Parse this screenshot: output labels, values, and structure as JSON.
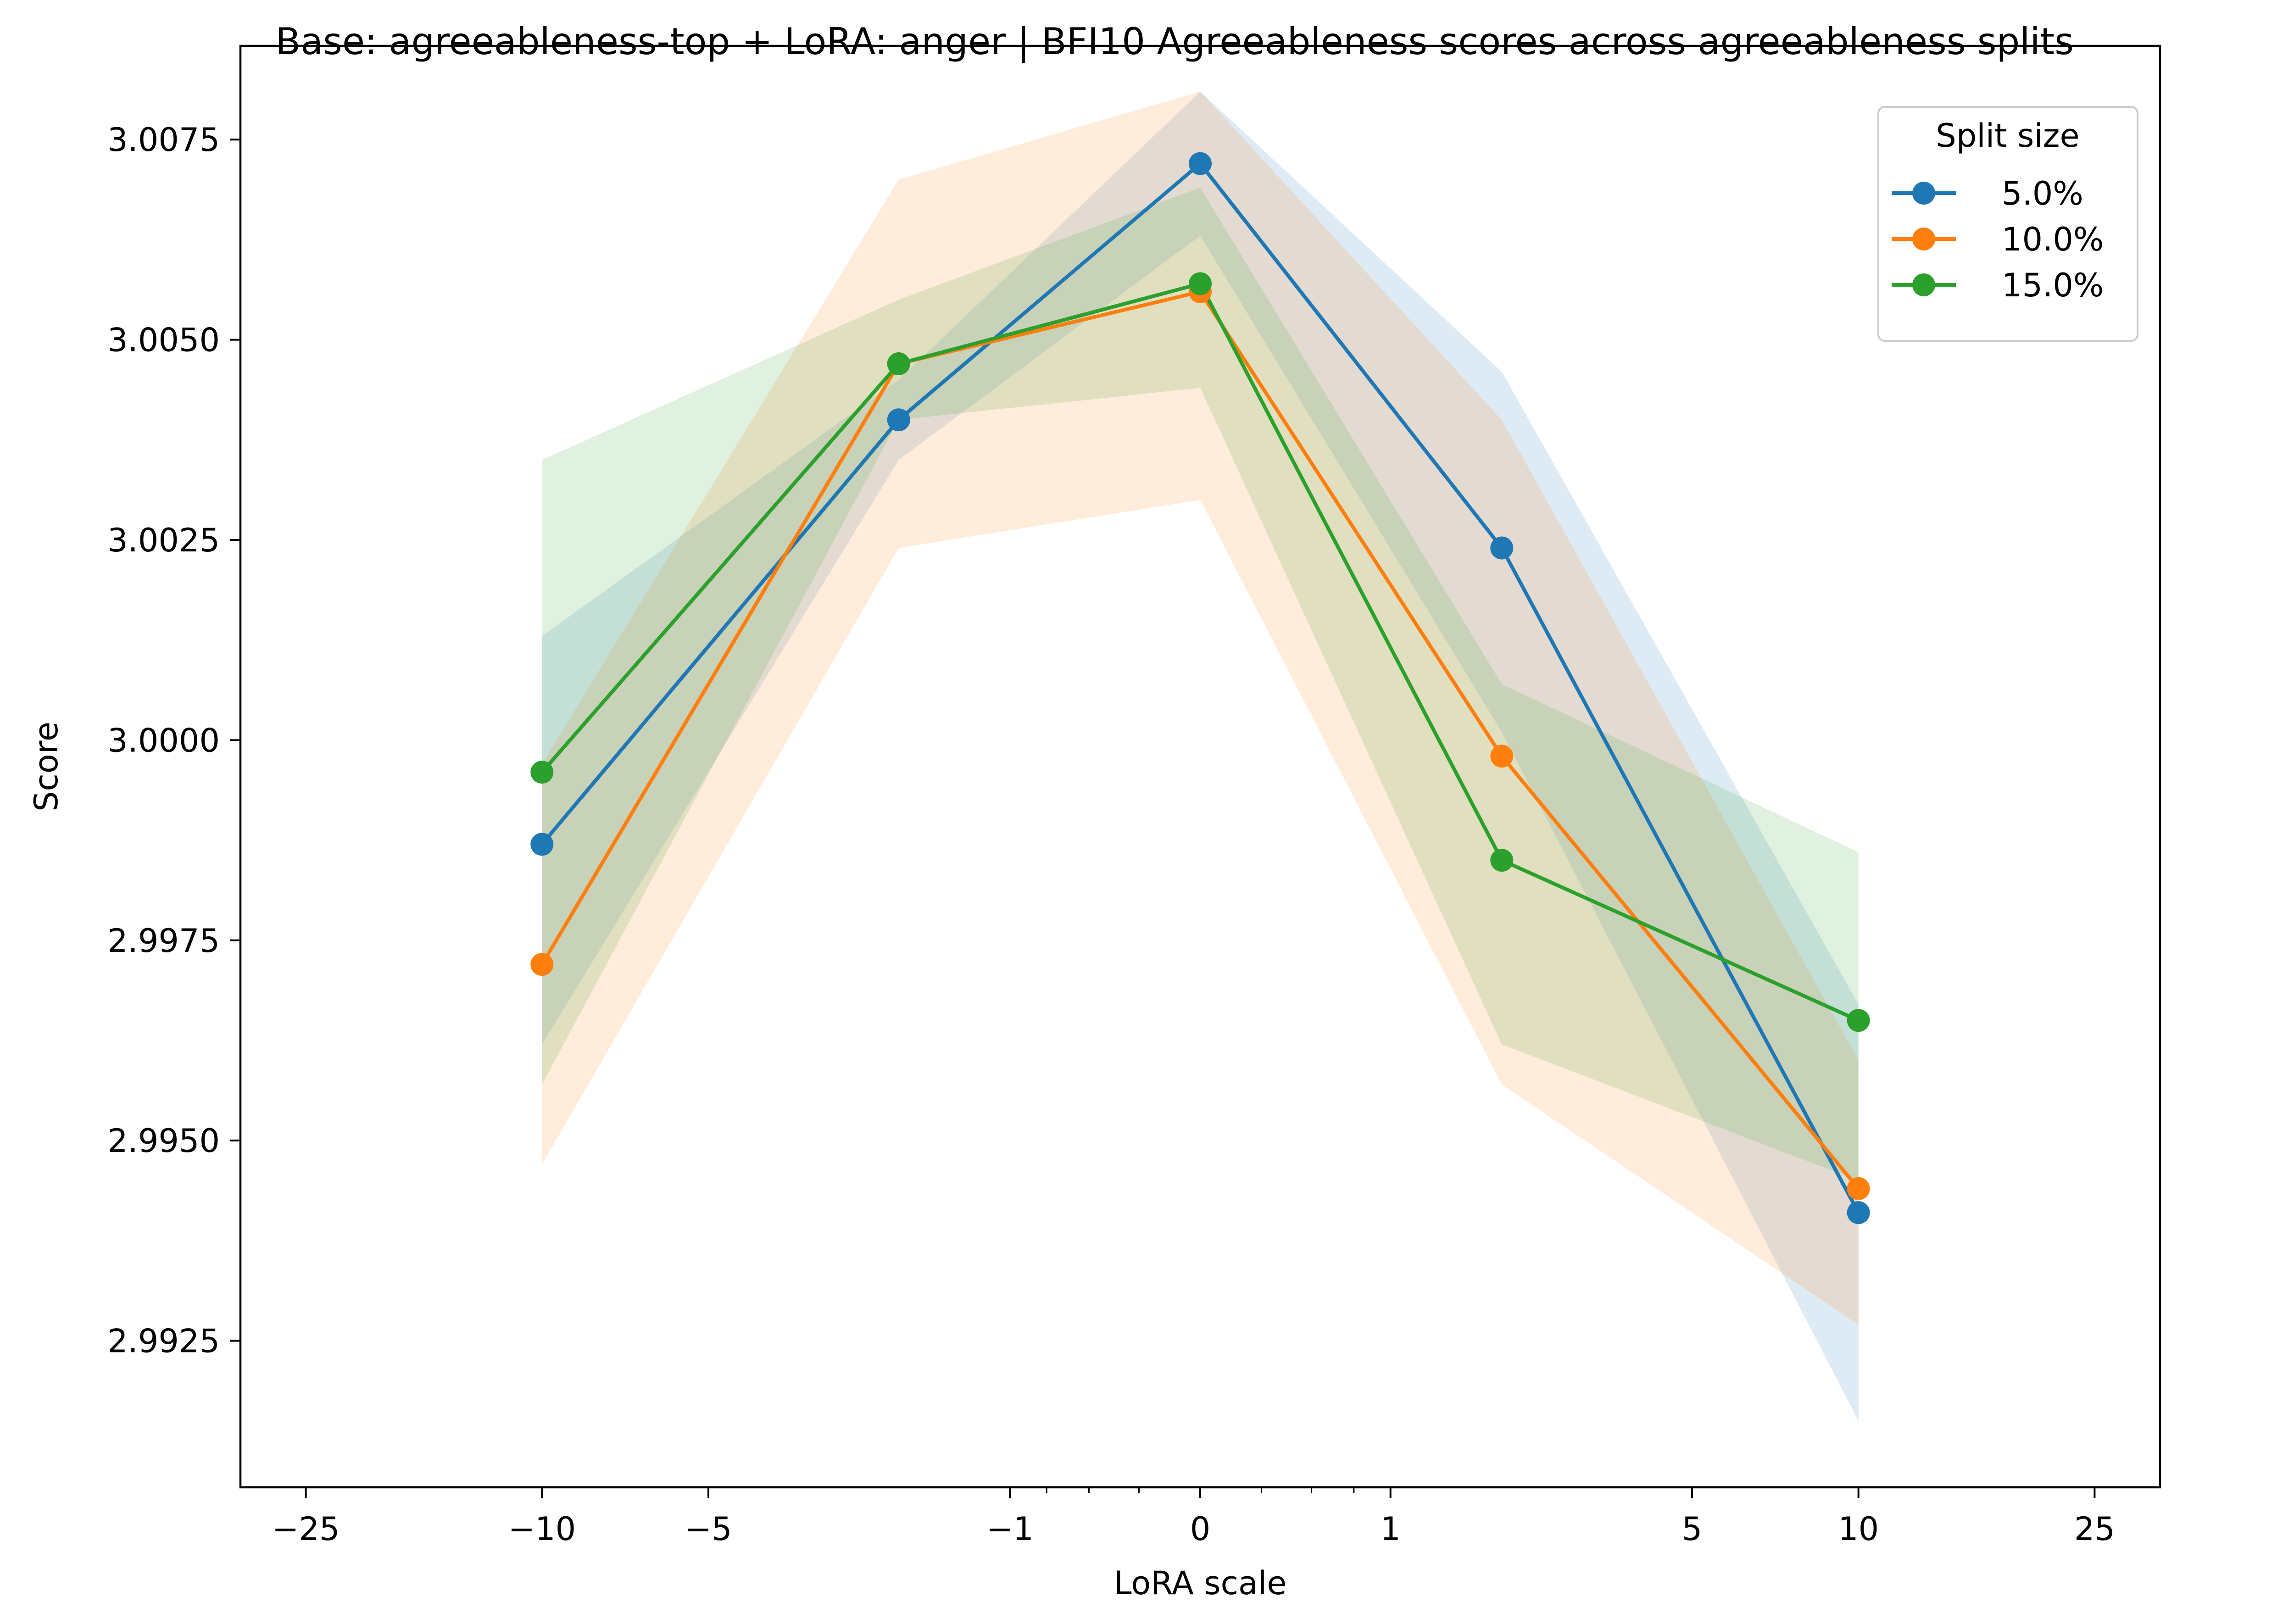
{
  "chart_data": {
    "type": "line",
    "title": "Base: agreeableness-top + LoRA: anger | BFI10 Agreeableness scores across agreeableness splits",
    "xlabel": "LoRA scale",
    "ylabel": "Score",
    "x_scale": "symlog",
    "x": [
      -10,
      -2,
      0,
      2,
      10
    ],
    "x_ticks": [
      {
        "value": -25,
        "label": "−25"
      },
      {
        "value": -10,
        "label": "−10"
      },
      {
        "value": -5,
        "label": "−5"
      },
      {
        "value": -1,
        "label": "−1"
      },
      {
        "value": 0,
        "label": "0"
      },
      {
        "value": 1,
        "label": "1"
      },
      {
        "value": 5,
        "label": "5"
      },
      {
        "value": 10,
        "label": "10"
      },
      {
        "value": 25,
        "label": "25"
      }
    ],
    "x_minor_ticks": [
      -0.75,
      -0.5,
      -0.25,
      0.25,
      0.5,
      0.75
    ],
    "xlim": [
      -32,
      32
    ],
    "y_ticks": [
      2.9925,
      2.995,
      2.9975,
      3.0,
      3.0025,
      3.005,
      3.0075
    ],
    "y_tick_labels": [
      "2.9925",
      "2.9950",
      "2.9975",
      "3.0000",
      "3.0025",
      "3.0050",
      "3.0075"
    ],
    "ylim": [
      2.99067,
      3.00867
    ],
    "grid": false,
    "legend": {
      "title": "Split size",
      "position": "top-right"
    },
    "series": [
      {
        "name": "5.0%",
        "color": "#1f77b4",
        "values": [
          2.9987,
          3.004,
          3.0072,
          3.0024,
          2.9941
        ],
        "band_low": [
          2.9962,
          3.0035,
          3.0063,
          3.0001,
          2.9915
        ],
        "band_high": [
          3.0013,
          3.0045,
          3.0081,
          3.0046,
          2.9967
        ]
      },
      {
        "name": "10.0%",
        "color": "#ff7f0e",
        "values": [
          2.9972,
          3.0047,
          3.0056,
          2.9998,
          2.9944
        ],
        "band_low": [
          2.9947,
          3.0024,
          3.003,
          2.9957,
          2.9927
        ],
        "band_high": [
          2.9997,
          3.007,
          3.0081,
          3.004,
          2.996
        ]
      },
      {
        "name": "15.0%",
        "color": "#2ca02c",
        "values": [
          2.9996,
          3.0047,
          3.0057,
          2.9985,
          2.9965
        ],
        "band_low": [
          2.9957,
          3.004,
          3.0044,
          2.9962,
          2.9945
        ],
        "band_high": [
          3.0035,
          3.0055,
          3.0069,
          3.0007,
          2.9986
        ]
      }
    ]
  }
}
